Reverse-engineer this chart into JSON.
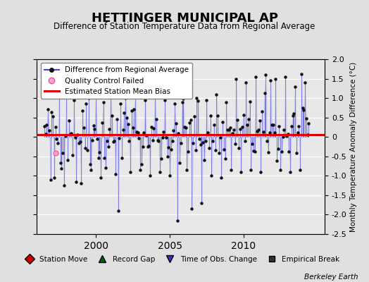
{
  "title": "HETTINGER MUNICIPAL AP",
  "subtitle": "Difference of Station Temperature Data from Regional Average",
  "ylabel": "Monthly Temperature Anomaly Difference (°C)",
  "xlim": [
    1996.0,
    2015.5
  ],
  "ylim": [
    -2.5,
    2.0
  ],
  "yticks": [
    -2.5,
    -2.0,
    -1.5,
    -1.0,
    -0.5,
    0.0,
    0.5,
    1.0,
    1.5,
    2.0
  ],
  "xticks": [
    2000,
    2005,
    2010
  ],
  "bias_value": 0.05,
  "bias_color": "#dd0000",
  "line_color": "#4444dd",
  "fill_color": "#aaaaee",
  "dot_color": "#111111",
  "qc_color_face": "#ffaacc",
  "qc_color_edge": "#ff44aa",
  "background_color": "#e0e0e0",
  "plot_bg_color": "#e8e8e8",
  "grid_color": "#ffffff",
  "bottom_legend_items": [
    {
      "label": "Station Move",
      "color": "#cc0000",
      "marker": "D"
    },
    {
      "label": "Record Gap",
      "color": "#006600",
      "marker": "^"
    },
    {
      "label": "Time of Obs. Change",
      "color": "#3333cc",
      "marker": "v"
    },
    {
      "label": "Empirical Break",
      "color": "#333333",
      "marker": "s"
    }
  ],
  "qc_failed_x": [
    1997.25
  ],
  "qc_failed_y": [
    -0.42
  ],
  "seed": 42,
  "start_year": 1996.5,
  "n_points": 216
}
